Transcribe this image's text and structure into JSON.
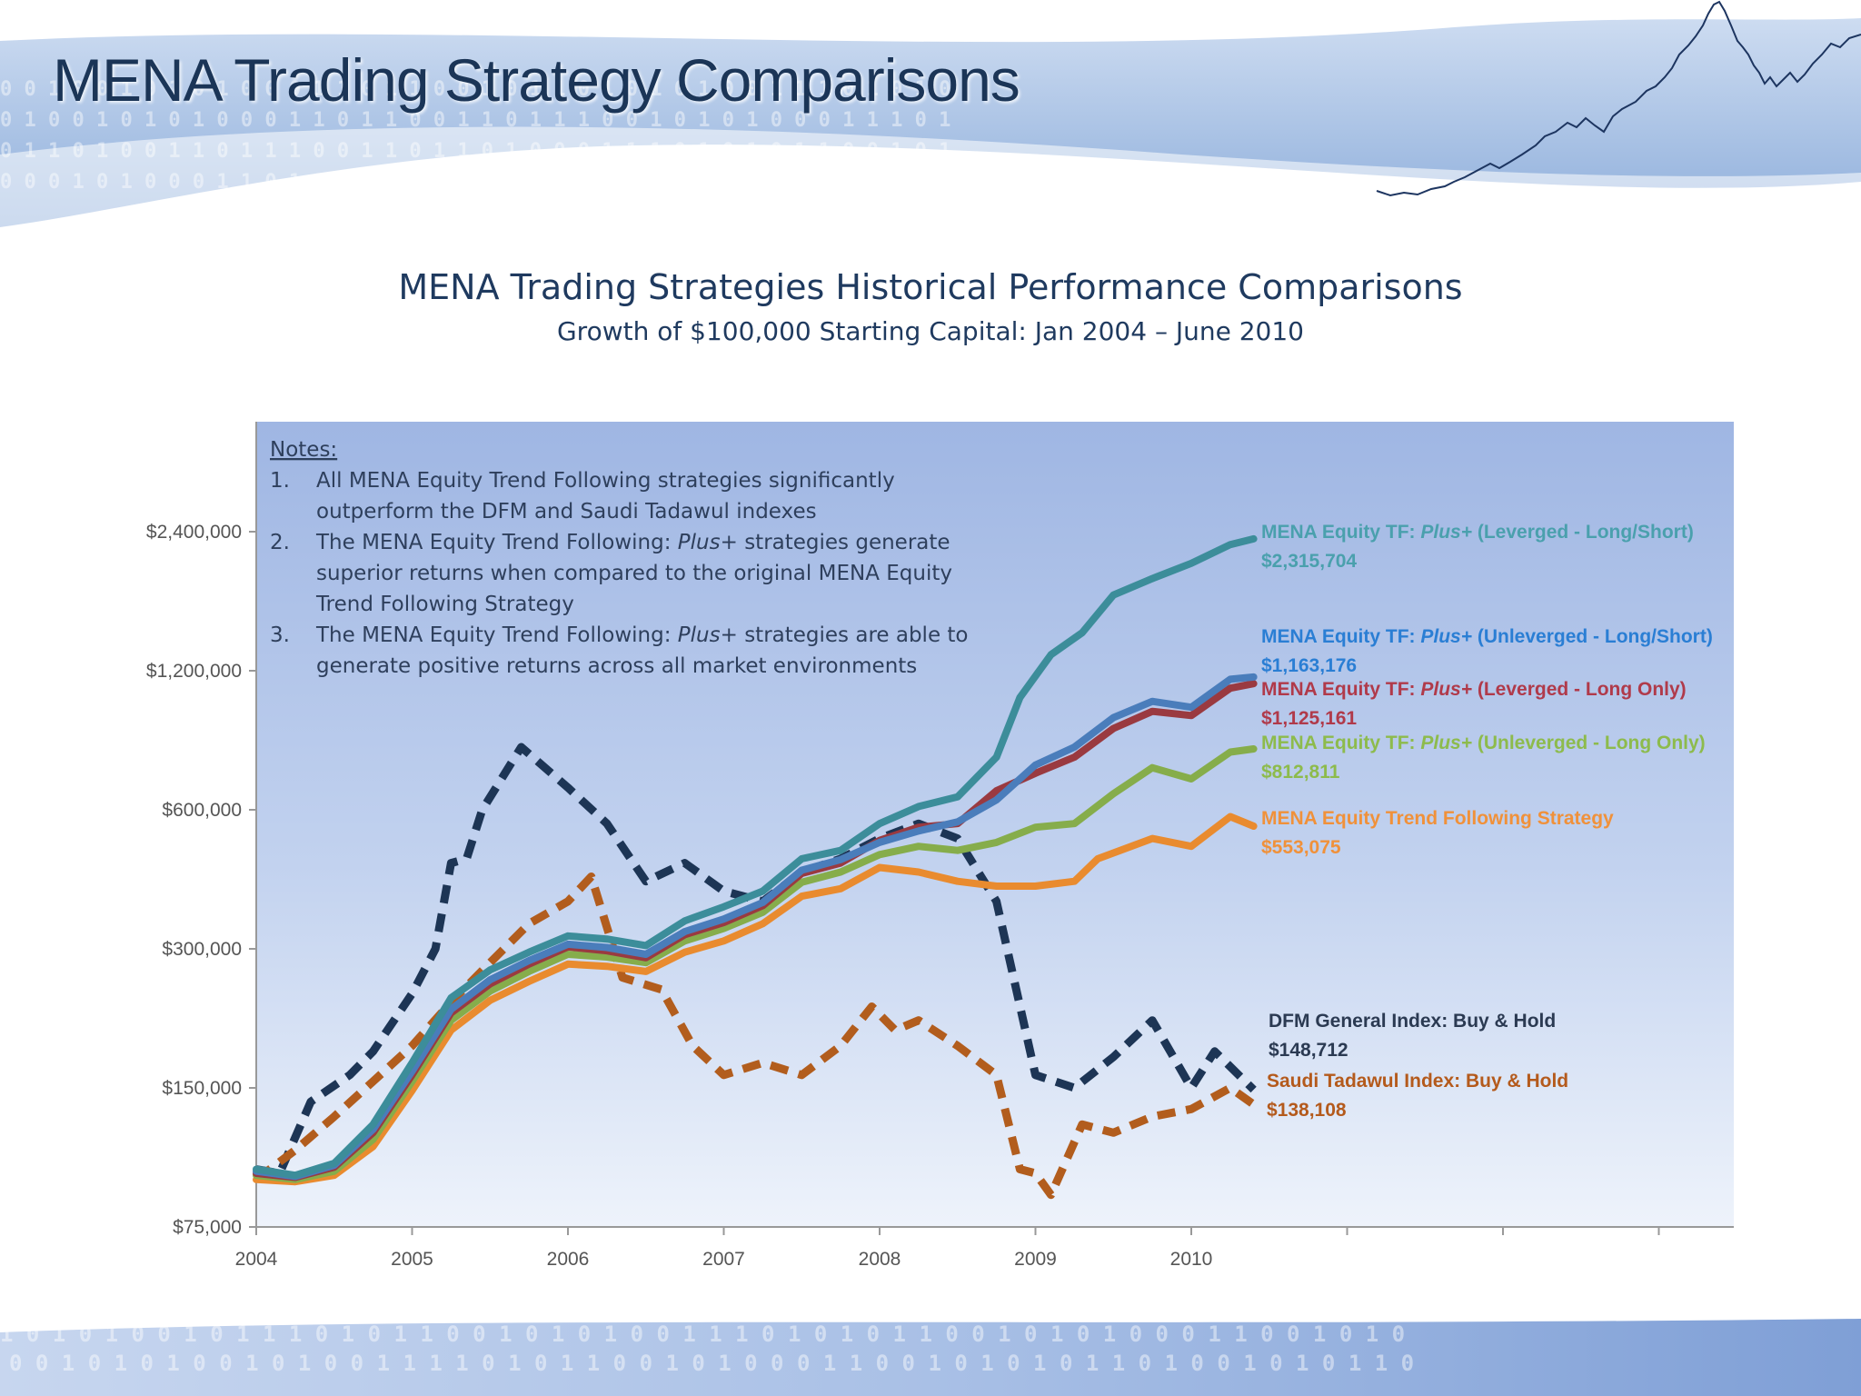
{
  "slide": {
    "title": "MENA Trading Strategy Comparisons",
    "banner_digits_top": [
      "0 0 1 0 0 1 0 1 0 1 0 0 0 1 1 0 1 1 0 0 1 0 1 1 0 1 0 1 0 1 0 0 1 1 1 0 1 0 1 0",
      "0 1 0 0 1 0 1 0 1 0 0 0 1 1 0 1 1 0 0 1 1 0 1 1 1 0 0 1 0 1 0 1 0 0 0 1 1 1 0 1",
      "0 1 1 0 1 0 0 1 1 0 1 1 1 0 0 1 1 0 1 1 0 1 0 0 0 1 1 1 0 1 0 1 0 1 1 0 0 1 0 1",
      "0 0 0 1 0 1 0 0 0 1 1 0 1 1 1 0 0 1 0 1 0 1 1 0 1 0 1 0 0 0 1 1 0 1 0 1 1 0 1 0"
    ],
    "banner_digits_bottom": [
      "1 0 1 0 1 0 0 1 0 1 1 1 0 1 0 1 1 0 0 1 0 1 0 1 0 0 1 1 1 0 1 0 1 0 1 1 0 0 1 0 1 0 1 0 0 0 1 1 0 0 1 0 1 0",
      "0 0 1 0 1 0 1 0 0 1 0 1 0 0 1 1 1 1 0 1 0 1 1 0 0 1 0 1 0 0 0 1 1 0 0 1 0 1 0 1 0 1 1 0 1 0 0 1 0 1 0 1 1 0"
    ],
    "colors": {
      "title": "#1b3557",
      "banner": "#9fb9e0"
    }
  },
  "chart_data": {
    "type": "line",
    "title": "MENA Trading Strategies Historical Performance Comparisons",
    "subtitle": "Growth of $100,000 Starting Capital: Jan 2004 – June 2010",
    "x_axis": {
      "ticks": [
        "2004",
        "2005",
        "2006",
        "2007",
        "2008",
        "2009",
        "2010",
        "",
        "",
        ""
      ],
      "range": [
        2004,
        2013.5
      ]
    },
    "y_axis": {
      "scale": "log",
      "range": [
        75000,
        3500000
      ],
      "ticks": [
        75000,
        150000,
        300000,
        600000,
        1200000,
        2400000
      ],
      "tick_labels": [
        "$75,000",
        "$150,000",
        "$300,000",
        "$600,000",
        "$1,200,000",
        "$2,400,000"
      ]
    },
    "grid": false,
    "legend": "inline-right",
    "notes": {
      "heading": "Notes:",
      "items": [
        {
          "num": "1.",
          "lines": [
            "All MENA Equity Trend Following strategies significantly",
            "outperform the DFM and Saudi Tadawul indexes"
          ]
        },
        {
          "num": "2.",
          "lines": [
            "The MENA Equity Trend Following: Plus+ strategies generate",
            "superior returns when compared to the original MENA Equity",
            "Trend Following Strategy"
          ]
        },
        {
          "num": "3.",
          "lines": [
            "The MENA Equity Trend Following: Plus+ strategies are able to",
            "generate positive returns across all market environments"
          ]
        }
      ]
    },
    "series": [
      {
        "name": "MENA Equity TF: Plus+ (Leverged - Long/Short)",
        "final_label": "$2,315,704",
        "color": "#3c8d9a",
        "dash": false,
        "points": [
          [
            2004.0,
            100000
          ],
          [
            2004.25,
            97000
          ],
          [
            2004.5,
            103000
          ],
          [
            2004.75,
            125000
          ],
          [
            2005.0,
            170000
          ],
          [
            2005.25,
            235000
          ],
          [
            2005.5,
            270000
          ],
          [
            2005.75,
            295000
          ],
          [
            2006.0,
            320000
          ],
          [
            2006.25,
            315000
          ],
          [
            2006.5,
            305000
          ],
          [
            2006.75,
            345000
          ],
          [
            2007.0,
            370000
          ],
          [
            2007.25,
            400000
          ],
          [
            2007.5,
            470000
          ],
          [
            2007.75,
            490000
          ],
          [
            2008.0,
            560000
          ],
          [
            2008.25,
            610000
          ],
          [
            2008.5,
            640000
          ],
          [
            2008.75,
            780000
          ],
          [
            2008.9,
            1050000
          ],
          [
            2009.1,
            1300000
          ],
          [
            2009.3,
            1450000
          ],
          [
            2009.5,
            1750000
          ],
          [
            2009.75,
            1900000
          ],
          [
            2010.0,
            2050000
          ],
          [
            2010.25,
            2250000
          ],
          [
            2010.4,
            2315704
          ]
        ]
      },
      {
        "name": "MENA Equity TF: Plus+ (Unleverged - Long/Short)",
        "final_label": "$1,163,176",
        "color": "#4a7dbb",
        "dash": false,
        "points": [
          [
            2004.0,
            99000
          ],
          [
            2004.25,
            96500
          ],
          [
            2004.5,
            102000
          ],
          [
            2004.75,
            122000
          ],
          [
            2005.0,
            163000
          ],
          [
            2005.25,
            222000
          ],
          [
            2005.5,
            257000
          ],
          [
            2005.75,
            283000
          ],
          [
            2006.0,
            307000
          ],
          [
            2006.25,
            302000
          ],
          [
            2006.5,
            292000
          ],
          [
            2006.75,
            327000
          ],
          [
            2007.0,
            348000
          ],
          [
            2007.25,
            378000
          ],
          [
            2007.5,
            444000
          ],
          [
            2007.75,
            468000
          ],
          [
            2008.0,
            510000
          ],
          [
            2008.25,
            540000
          ],
          [
            2008.5,
            565000
          ],
          [
            2008.75,
            630000
          ],
          [
            2009.0,
            750000
          ],
          [
            2009.25,
            820000
          ],
          [
            2009.5,
            950000
          ],
          [
            2009.75,
            1030000
          ],
          [
            2010.0,
            1000000
          ],
          [
            2010.25,
            1150000
          ],
          [
            2010.4,
            1163176
          ]
        ]
      },
      {
        "name": "MENA Equity TF: Plus+ (Leverged - Long Only)",
        "final_label": "$1,125,161",
        "color": "#9a3a40",
        "dash": false,
        "points": [
          [
            2004.0,
            98000
          ],
          [
            2004.25,
            96000
          ],
          [
            2004.5,
            101000
          ],
          [
            2004.75,
            120000
          ],
          [
            2005.0,
            160000
          ],
          [
            2005.25,
            218000
          ],
          [
            2005.5,
            252000
          ],
          [
            2005.75,
            278000
          ],
          [
            2006.0,
            303000
          ],
          [
            2006.25,
            297000
          ],
          [
            2006.5,
            287000
          ],
          [
            2006.75,
            322000
          ],
          [
            2007.0,
            342000
          ],
          [
            2007.25,
            372000
          ],
          [
            2007.5,
            437000
          ],
          [
            2007.75,
            460000
          ],
          [
            2008.0,
            515000
          ],
          [
            2008.25,
            550000
          ],
          [
            2008.5,
            560000
          ],
          [
            2008.75,
            660000
          ],
          [
            2009.0,
            720000
          ],
          [
            2009.25,
            780000
          ],
          [
            2009.5,
            900000
          ],
          [
            2009.75,
            980000
          ],
          [
            2010.0,
            960000
          ],
          [
            2010.25,
            1100000
          ],
          [
            2010.4,
            1125161
          ]
        ]
      },
      {
        "name": "MENA Equity TF: Plus+ (Unleverged - Long Only)",
        "final_label": "$812,811",
        "color": "#86ad4b",
        "dash": false,
        "points": [
          [
            2004.0,
            97000
          ],
          [
            2004.25,
            95000
          ],
          [
            2004.5,
            99000
          ],
          [
            2004.75,
            116000
          ],
          [
            2005.0,
            155000
          ],
          [
            2005.25,
            210000
          ],
          [
            2005.5,
            243000
          ],
          [
            2005.75,
            268000
          ],
          [
            2006.0,
            292000
          ],
          [
            2006.25,
            288000
          ],
          [
            2006.5,
            280000
          ],
          [
            2006.75,
            312000
          ],
          [
            2007.0,
            332000
          ],
          [
            2007.25,
            360000
          ],
          [
            2007.5,
            418000
          ],
          [
            2007.75,
            440000
          ],
          [
            2008.0,
            480000
          ],
          [
            2008.25,
            500000
          ],
          [
            2008.5,
            490000
          ],
          [
            2008.75,
            510000
          ],
          [
            2009.0,
            550000
          ],
          [
            2009.25,
            560000
          ],
          [
            2009.5,
            650000
          ],
          [
            2009.75,
            740000
          ],
          [
            2010.0,
            700000
          ],
          [
            2010.25,
            800000
          ],
          [
            2010.4,
            812811
          ]
        ]
      },
      {
        "name": "MENA Equity Trend Following Strategy",
        "final_label": "$553,075",
        "color": "#e98b2f",
        "dash": false,
        "points": [
          [
            2004.0,
            95000
          ],
          [
            2004.25,
            94000
          ],
          [
            2004.5,
            97000
          ],
          [
            2004.75,
            112000
          ],
          [
            2005.0,
            148000
          ],
          [
            2005.25,
            200000
          ],
          [
            2005.5,
            232000
          ],
          [
            2005.75,
            255000
          ],
          [
            2006.0,
            278000
          ],
          [
            2006.25,
            275000
          ],
          [
            2006.5,
            268000
          ],
          [
            2006.75,
            295000
          ],
          [
            2007.0,
            312000
          ],
          [
            2007.25,
            340000
          ],
          [
            2007.5,
            390000
          ],
          [
            2007.75,
            405000
          ],
          [
            2008.0,
            450000
          ],
          [
            2008.25,
            440000
          ],
          [
            2008.5,
            420000
          ],
          [
            2008.75,
            410000
          ],
          [
            2009.0,
            410000
          ],
          [
            2009.25,
            420000
          ],
          [
            2009.4,
            470000
          ],
          [
            2009.75,
            520000
          ],
          [
            2010.0,
            500000
          ],
          [
            2010.25,
            580000
          ],
          [
            2010.4,
            553075
          ]
        ]
      },
      {
        "name": "DFM General Index: Buy & Hold",
        "final_label": "$148,712",
        "color": "#1d3555",
        "dash": true,
        "points": [
          [
            2004.0,
            100000
          ],
          [
            2004.15,
            98000
          ],
          [
            2004.35,
            140000
          ],
          [
            2004.6,
            160000
          ],
          [
            2004.75,
            180000
          ],
          [
            2005.0,
            240000
          ],
          [
            2005.15,
            300000
          ],
          [
            2005.25,
            460000
          ],
          [
            2005.35,
            470000
          ],
          [
            2005.45,
            600000
          ],
          [
            2005.7,
            820000
          ],
          [
            2006.0,
            670000
          ],
          [
            2006.25,
            560000
          ],
          [
            2006.5,
            420000
          ],
          [
            2006.75,
            460000
          ],
          [
            2007.0,
            400000
          ],
          [
            2007.25,
            380000
          ],
          [
            2007.5,
            440000
          ],
          [
            2007.75,
            470000
          ],
          [
            2008.0,
            520000
          ],
          [
            2008.25,
            560000
          ],
          [
            2008.5,
            520000
          ],
          [
            2008.75,
            380000
          ],
          [
            2009.0,
            160000
          ],
          [
            2009.25,
            150000
          ],
          [
            2009.5,
            175000
          ],
          [
            2009.75,
            210000
          ],
          [
            2010.0,
            150000
          ],
          [
            2010.15,
            180000
          ],
          [
            2010.4,
            148712
          ]
        ]
      },
      {
        "name": "Saudi Tadawul Index: Buy & Hold",
        "final_label": "$138,108",
        "color": "#b25d1d",
        "dash": true,
        "points": [
          [
            2004.0,
            95000
          ],
          [
            2004.25,
            110000
          ],
          [
            2004.5,
            130000
          ],
          [
            2004.75,
            155000
          ],
          [
            2005.0,
            185000
          ],
          [
            2005.25,
            230000
          ],
          [
            2005.5,
            280000
          ],
          [
            2005.75,
            340000
          ],
          [
            2006.0,
            380000
          ],
          [
            2006.15,
            430000
          ],
          [
            2006.35,
            260000
          ],
          [
            2006.6,
            245000
          ],
          [
            2006.8,
            185000
          ],
          [
            2007.0,
            160000
          ],
          [
            2007.25,
            170000
          ],
          [
            2007.5,
            160000
          ],
          [
            2007.75,
            185000
          ],
          [
            2007.95,
            225000
          ],
          [
            2008.1,
            200000
          ],
          [
            2008.25,
            210000
          ],
          [
            2008.5,
            185000
          ],
          [
            2008.75,
            160000
          ],
          [
            2008.9,
            100000
          ],
          [
            2009.0,
            98000
          ],
          [
            2009.1,
            88000
          ],
          [
            2009.3,
            125000
          ],
          [
            2009.5,
            120000
          ],
          [
            2009.75,
            130000
          ],
          [
            2010.0,
            135000
          ],
          [
            2010.25,
            150000
          ],
          [
            2010.4,
            138108
          ]
        ]
      }
    ]
  }
}
